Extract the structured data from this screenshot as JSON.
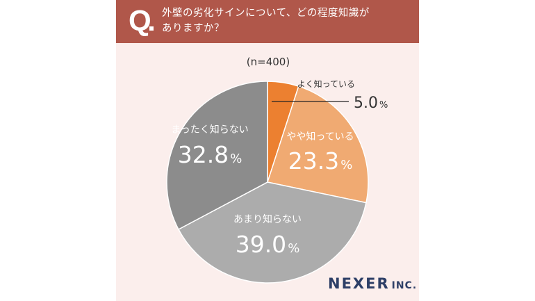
{
  "question": {
    "letter": "Q",
    "text_line1": "外壁の劣化サインについて、どの程度知識が",
    "text_line2": "ありますか？"
  },
  "sample": "(n=400)",
  "colors": {
    "header": "#b0574a",
    "background": "#fbeeec",
    "brand": "#2d3e66"
  },
  "chart_data": {
    "type": "pie",
    "labels": [
      "よく知っている",
      "やや知っている",
      "あまり知らない",
      "まったく知らない"
    ],
    "values": [
      5.0,
      23.3,
      39.0,
      32.8
    ],
    "value_labels": [
      "5.0",
      "23.3",
      "39.0",
      "32.8"
    ],
    "unit": "%",
    "colors": [
      "#ec8030",
      "#f0aa72",
      "#acacac",
      "#8c8c8c"
    ],
    "start": "12 o'clock",
    "direction": "clockwise"
  },
  "brand": {
    "main": "NEXER",
    "sub": "INC."
  }
}
